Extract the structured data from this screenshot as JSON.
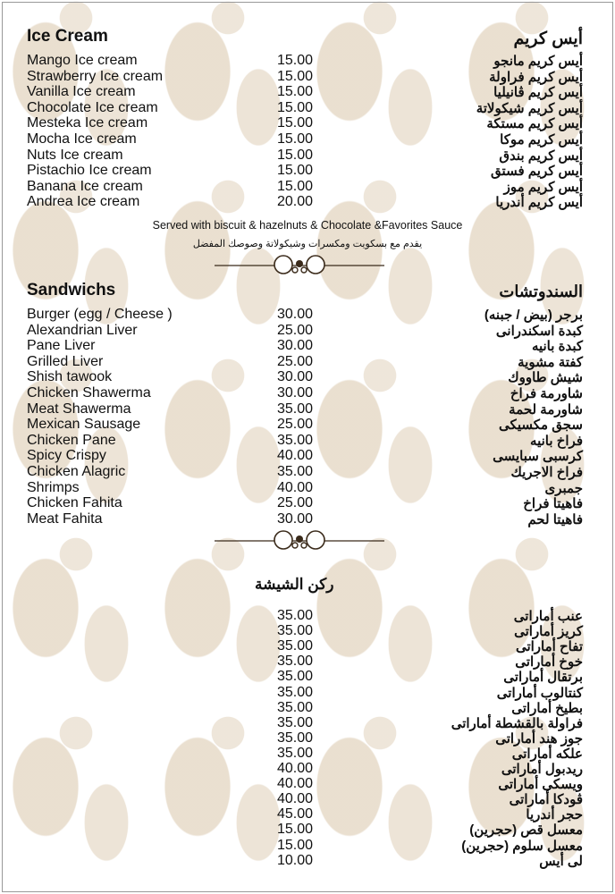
{
  "ice_cream": {
    "title_en": "Ice Cream",
    "title_ar": "أيس كريم",
    "items": [
      {
        "en": "Mango Ice cream",
        "price": "15.00",
        "ar": "أيس كريم مانجو"
      },
      {
        "en": "Strawberry Ice cream",
        "price": "15.00",
        "ar": "أيس كريم فراولة"
      },
      {
        "en": "Vanilla Ice cream",
        "price": "15.00",
        "ar": "أيس كريم ڤانيليا"
      },
      {
        "en": "Chocolate Ice cream",
        "price": "15.00",
        "ar": "أيس كريم شيكولاتة"
      },
      {
        "en": "Mesteka Ice cream",
        "price": "15.00",
        "ar": "أيس كريم مستكة"
      },
      {
        "en": "Mocha Ice cream",
        "price": "15.00",
        "ar": "أيس كريم موكا"
      },
      {
        "en": "Nuts Ice cream",
        "price": "15.00",
        "ar": "أيس كريم بندق"
      },
      {
        "en": "Pistachio Ice cream",
        "price": "15.00",
        "ar": "أيس كريم فستق"
      },
      {
        "en": "Banana Ice cream",
        "price": "15.00",
        "ar": "أيس كريم موز"
      },
      {
        "en": "Andrea Ice cream",
        "price": "20.00",
        "ar": "أيس كريم أندريا"
      }
    ],
    "note_en": "Served with biscuit & hazelnuts & Chocolate &Favorites Sauce",
    "note_ar": "يقدم مع بسكويت ومكسرات وشيكولاتة وصوصك المفضل"
  },
  "sandwiches": {
    "title_en": "Sandwichs",
    "title_ar": "السندوتشات",
    "items": [
      {
        "en": "Burger (egg / Cheese )",
        "price": "30.00",
        "ar": "برجر (بيض / جبنه)"
      },
      {
        "en": "Alexandrian Liver",
        "price": "25.00",
        "ar": "كبدة اسكندرانى"
      },
      {
        "en": "Pane Liver",
        "price": "30.00",
        "ar": "كبدة بانيه"
      },
      {
        "en": "Grilled Liver",
        "price": "25.00",
        "ar": "كفتة مشوية"
      },
      {
        "en": "Shish tawook",
        "price": "30.00",
        "ar": "شيش طاووك"
      },
      {
        "en": "Chicken Shawerma",
        "price": "30.00",
        "ar": "شاورمة فراخ"
      },
      {
        "en": "Meat Shawerma",
        "price": "35.00",
        "ar": "شاورمة لحمة"
      },
      {
        "en": "Mexican Sausage",
        "price": "25.00",
        "ar": "سجق مكسيكى"
      },
      {
        "en": "Chicken Pane",
        "price": "35.00",
        "ar": "فراخ بانيه"
      },
      {
        "en": "Spicy Crispy",
        "price": "40.00",
        "ar": "كرسبى سبايسى"
      },
      {
        "en": "Chicken Alagric",
        "price": "35.00",
        "ar": "فراخ الاجريك"
      },
      {
        "en": "Shrimps",
        "price": "40.00",
        "ar": "جمبرى"
      },
      {
        "en": "Chicken Fahita",
        "price": "25.00",
        "ar": "فاهيتا فراخ"
      },
      {
        "en": "Meat Fahita",
        "price": "30.00",
        "ar": "فاهيتا لحم"
      }
    ]
  },
  "shisha": {
    "title_ar": "ركن الشيشة",
    "items": [
      {
        "price": "35.00",
        "ar": "عنب أماراتى"
      },
      {
        "price": "35.00",
        "ar": "كريز أماراتى"
      },
      {
        "price": "35.00",
        "ar": "تفاح أماراتى"
      },
      {
        "price": "35.00",
        "ar": "خوخ أماراتى"
      },
      {
        "price": "35.00",
        "ar": "برتقال أماراتى"
      },
      {
        "price": "35.00",
        "ar": "كنتالوب أماراتى"
      },
      {
        "price": "35.00",
        "ar": "بطيخ أماراتى"
      },
      {
        "price": "35.00",
        "ar": "فراولة بالقشطة أماراتى"
      },
      {
        "price": "35.00",
        "ar": "جوز هند أماراتى"
      },
      {
        "price": "35.00",
        "ar": "علكه أماراتى"
      },
      {
        "price": "40.00",
        "ar": "ريدبول أماراتى"
      },
      {
        "price": "40.00",
        "ar": "ويسكى أماراتى"
      },
      {
        "price": "40.00",
        "ar": "ڤودكا أماراتى"
      },
      {
        "price": "45.00",
        "ar": "حجر أندريا"
      },
      {
        "price": "15.00",
        "ar": "معسل قص (حجرين)"
      },
      {
        "price": "15.00",
        "ar": "معسل سلوم (حجرين)"
      },
      {
        "price": "10.00",
        "ar": "لى أيس"
      }
    ]
  },
  "colors": {
    "pattern": "#e1d2bc",
    "ornament": "#3a2a1a"
  }
}
